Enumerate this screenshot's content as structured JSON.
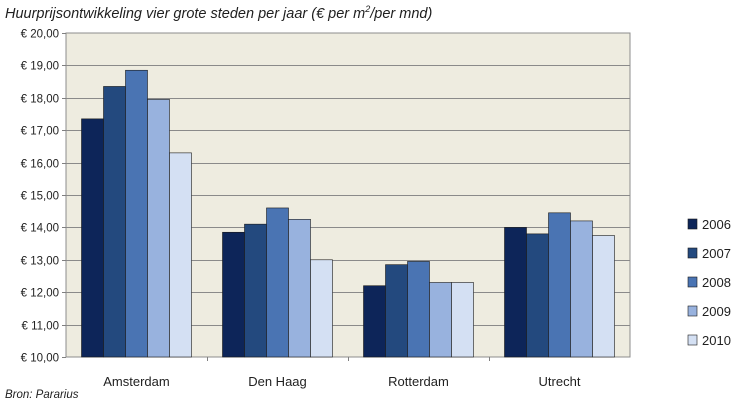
{
  "chart_data": {
    "type": "bar",
    "title_parts": {
      "before": "Huurprijsontwikkeling  vier grote steden per jaar (€ per m",
      "sup": "2",
      "after": "/per mnd)"
    },
    "source": "Bron: Pararius",
    "categories": [
      "Amsterdam",
      "Den Haag",
      "Rotterdam",
      "Utrecht"
    ],
    "series": [
      {
        "name": "2006",
        "color": "#0d2559",
        "values": [
          17.35,
          13.85,
          12.2,
          14.0
        ]
      },
      {
        "name": "2007",
        "color": "#23497e",
        "values": [
          18.35,
          14.1,
          12.85,
          13.8
        ]
      },
      {
        "name": "2008",
        "color": "#4a74b3",
        "values": [
          18.85,
          14.6,
          12.95,
          14.45
        ]
      },
      {
        "name": "2009",
        "color": "#98b2de",
        "values": [
          17.95,
          14.25,
          12.3,
          14.2
        ]
      },
      {
        "name": "2010",
        "color": "#d4e0f3",
        "values": [
          16.3,
          13.0,
          12.3,
          13.75
        ]
      }
    ],
    "ylim": [
      10,
      20
    ],
    "y_tick_labels": [
      "€ 10,00",
      "€ 11,00",
      "€ 12,00",
      "€ 13,00",
      "€ 14,00",
      "€ 15,00",
      "€ 16,00",
      "€ 17,00",
      "€ 18,00",
      "€ 19,00",
      "€ 20,00"
    ],
    "grid": true,
    "plot_background": "#eeece0",
    "legend_position": "right"
  }
}
